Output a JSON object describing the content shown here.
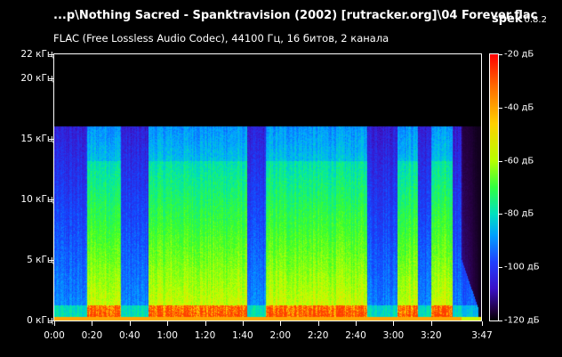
{
  "header": {
    "filename": "...p\\Nothing Sacred - Spanktravision (2002) [rutracker.org]\\04 Forever.flac",
    "brand": "spek",
    "version": "0.8.2",
    "subtitle": "FLAC (Free Lossless Audio Codec), 44100 Гц, 16 битов, 2 канала"
  },
  "y_axis": {
    "ticks": [
      "0 кГц",
      "5 кГц",
      "10 кГц",
      "15 кГц",
      "20 кГц",
      "22 кГц"
    ],
    "values_khz": [
      0,
      5,
      10,
      15,
      20,
      22
    ]
  },
  "x_axis": {
    "ticks": [
      "0:00",
      "0:20",
      "0:40",
      "1:00",
      "1:20",
      "1:40",
      "2:00",
      "2:20",
      "2:40",
      "3:00",
      "3:20",
      "3:47"
    ],
    "values_sec": [
      0,
      20,
      40,
      60,
      80,
      100,
      120,
      140,
      160,
      180,
      200,
      227
    ]
  },
  "legend": {
    "ticks": [
      "-20 дБ",
      "-40 дБ",
      "-60 дБ",
      "-80 дБ",
      "-100 дБ",
      "-120 дБ"
    ],
    "values_db": [
      -20,
      -40,
      -60,
      -80,
      -100,
      -120
    ]
  },
  "spectrogram": {
    "duration_sec": 227,
    "max_khz": 22,
    "cutoff_khz": 16,
    "quiet_sections_sec": [
      [
        0,
        17
      ],
      [
        35,
        50
      ],
      [
        102,
        112
      ],
      [
        166,
        182
      ],
      [
        193,
        200
      ],
      [
        211,
        227
      ]
    ]
  }
}
